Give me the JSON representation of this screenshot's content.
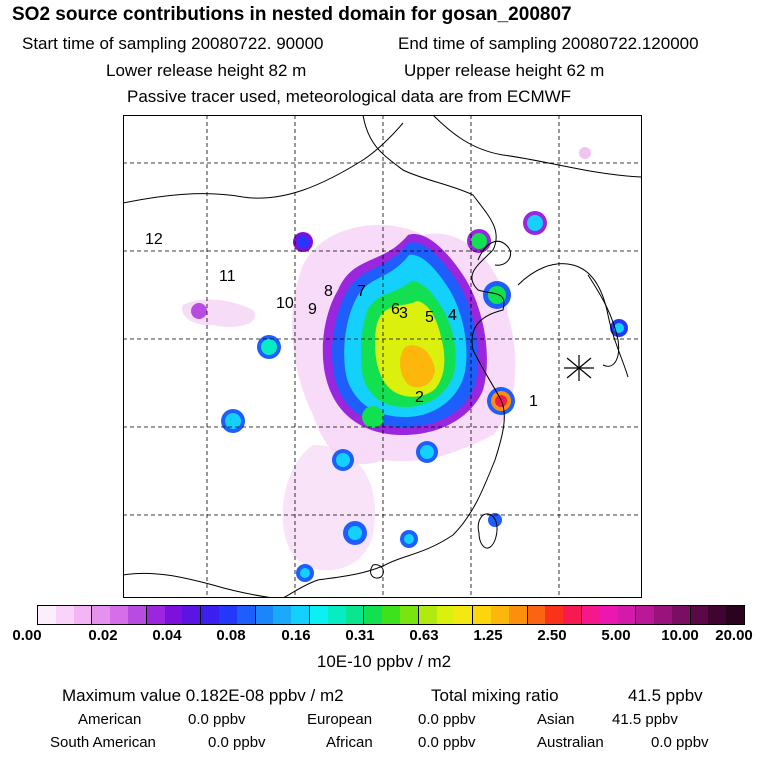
{
  "header": {
    "title": "SO2 source contributions in nested domain for gosan_200807",
    "start_label": "Start time of sampling 20080722. 90000",
    "end_label": "End time of sampling 20080722.120000",
    "lower_label": "Lower release height   82 m",
    "upper_label": "Upper release height   62 m",
    "tracer_note": "Passive tracer used, meteorological data are from ECMWF"
  },
  "map": {
    "region_labels": [
      "1",
      "2",
      "3",
      "4",
      "5",
      "6",
      "7",
      "8",
      "9",
      "10",
      "11",
      "12"
    ],
    "receptor_marker": "asterisk-marker"
  },
  "colorbar": {
    "ticks": [
      "0.00",
      "0.02",
      "0.04",
      "0.08",
      "0.16",
      "0.31",
      "0.63",
      "1.25",
      "2.50",
      "5.00",
      "10.00",
      "20.00"
    ],
    "colors": [
      "#fdeefd",
      "#f9d3f9",
      "#f3b5f3",
      "#e592ee",
      "#d56ee8",
      "#b84ce0",
      "#9a26dd",
      "#7d10dc",
      "#5a14e3",
      "#3b1ff0",
      "#2438fa",
      "#1d5efc",
      "#1b85fb",
      "#1aa9fc",
      "#14d0fc",
      "#0cf0f4",
      "#08ecc4",
      "#0ae68f",
      "#12e050",
      "#3ee21c",
      "#78e410",
      "#b1ea0e",
      "#dcf00e",
      "#f4e812",
      "#fcd50e",
      "#fcb60c",
      "#fc8f0c",
      "#fb6412",
      "#f8331a",
      "#f71a50",
      "#f4188a",
      "#ec16b0",
      "#d41aa8",
      "#b91896",
      "#9a137d",
      "#7a0e62",
      "#5a0846",
      "#3f0530",
      "#2a031f"
    ],
    "unit": "10E-10 ppbv / m2"
  },
  "summary": {
    "max_label": "Maximum value  0.182E-08 ppbv / m2",
    "total_label": "Total mixing ratio",
    "total_value": "41.5 ppbv",
    "american_label": "American",
    "american_value": "0.0 ppbv",
    "european_label": "European",
    "european_value": "0.0 ppbv",
    "asian_label": "Asian",
    "asian_value": "41.5 ppbv",
    "south_american_label": "South American",
    "south_american_value": "0.0 ppbv",
    "african_label": "African",
    "african_value": "0.0 ppbv",
    "australian_label": "Australian",
    "australian_value": "0.0 ppbv"
  }
}
